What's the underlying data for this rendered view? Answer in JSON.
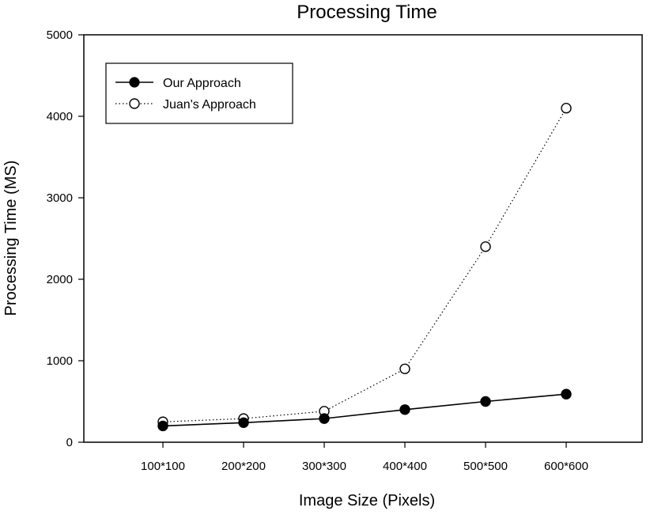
{
  "chart_data": {
    "type": "line",
    "title": "Processing Time",
    "xlabel": "Image Size (Pixels)",
    "ylabel": "Processing Time (MS)",
    "categories": [
      "100*100",
      "200*200",
      "300*300",
      "400*400",
      "500*500",
      "600*600"
    ],
    "ylim": [
      0,
      5000
    ],
    "yticks": [
      0,
      1000,
      2000,
      3000,
      4000,
      5000
    ],
    "legend_position": "top-left",
    "grid": false,
    "series": [
      {
        "name": "Our Approach",
        "values": [
          200,
          240,
          290,
          400,
          500,
          590
        ],
        "line_style": "solid",
        "marker": "filled-circle",
        "color": "#000000"
      },
      {
        "name": "Juan's Approach",
        "values": [
          250,
          290,
          380,
          900,
          2400,
          4100
        ],
        "line_style": "dotted",
        "marker": "open-circle",
        "color": "#000000"
      }
    ]
  }
}
